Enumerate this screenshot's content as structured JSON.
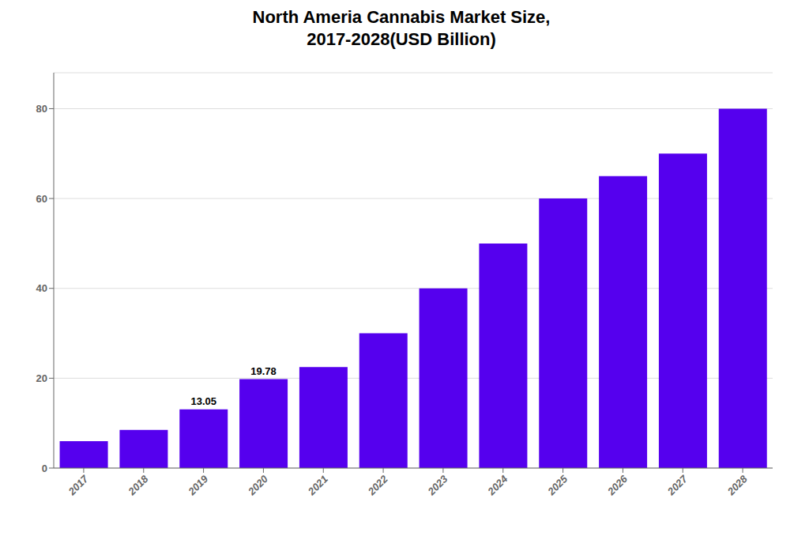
{
  "chart_data": {
    "type": "bar",
    "title": "North Ameria Cannabis Market Size,\n2017-2028(USD Billion)",
    "categories": [
      "2017",
      "2018",
      "2019",
      "2020",
      "2021",
      "2022",
      "2023",
      "2024",
      "2025",
      "2026",
      "2027",
      "2028"
    ],
    "values": [
      6,
      8.5,
      13.05,
      19.78,
      22.5,
      30,
      40,
      50,
      60,
      65,
      70,
      80
    ],
    "color": "#5500EE",
    "ylim": [
      0,
      88
    ],
    "yticks": [
      0,
      20,
      40,
      60,
      80
    ],
    "grid": true,
    "annotations": [
      {
        "text": "13.05",
        "x": "2019",
        "y": 13.05
      },
      {
        "text": "19.78",
        "x": "2020",
        "y": 19.78
      }
    ]
  }
}
